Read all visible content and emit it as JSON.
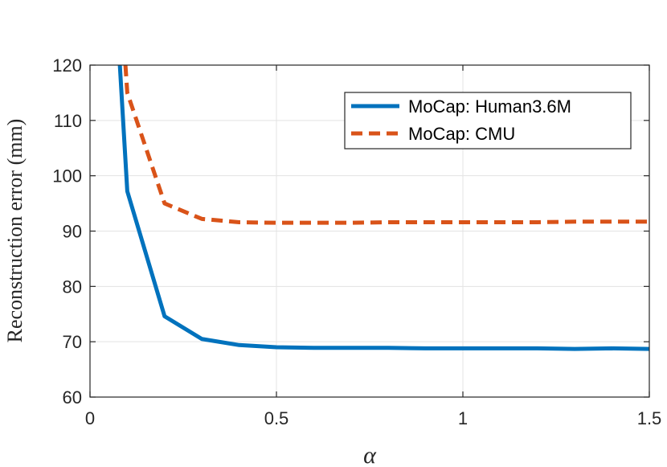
{
  "chart_data": {
    "type": "line",
    "title": "",
    "xlabel": "α",
    "ylabel": "Reconstruction error (mm)",
    "xlim": [
      0,
      1.5
    ],
    "ylim": [
      60,
      120
    ],
    "xticks": [
      0,
      0.5,
      1,
      1.5
    ],
    "xtick_labels": [
      "0",
      "0.5",
      "1",
      "1.5"
    ],
    "yticks": [
      60,
      70,
      80,
      90,
      100,
      110,
      120
    ],
    "ytick_labels": [
      "60",
      "70",
      "80",
      "90",
      "100",
      "110",
      "120"
    ],
    "grid": true,
    "legend_position": "top-right",
    "series": [
      {
        "name": "MoCap: Human3.6M",
        "color": "#0072BD",
        "style": "solid",
        "x": [
          0.1,
          0.2,
          0.3,
          0.4,
          0.5,
          0.6,
          0.7,
          0.8,
          0.9,
          1.0,
          1.1,
          1.2,
          1.3,
          1.4,
          1.5
        ],
        "y": [
          97.2,
          74.6,
          70.5,
          69.4,
          69.0,
          68.9,
          68.9,
          68.9,
          68.8,
          68.8,
          68.8,
          68.8,
          68.7,
          68.8,
          68.7
        ],
        "start": {
          "x": 0.08,
          "y": 120
        }
      },
      {
        "name": "MoCap: CMU",
        "color": "#D95319",
        "style": "dashed",
        "x": [
          0.1,
          0.2,
          0.3,
          0.4,
          0.5,
          0.6,
          0.7,
          0.8,
          0.9,
          1.0,
          1.1,
          1.2,
          1.3,
          1.4,
          1.5
        ],
        "y": [
          115.0,
          95.0,
          92.2,
          91.6,
          91.5,
          91.5,
          91.5,
          91.6,
          91.6,
          91.6,
          91.6,
          91.6,
          91.7,
          91.7,
          91.7
        ],
        "start": {
          "x": 0.095,
          "y": 120
        }
      }
    ]
  }
}
